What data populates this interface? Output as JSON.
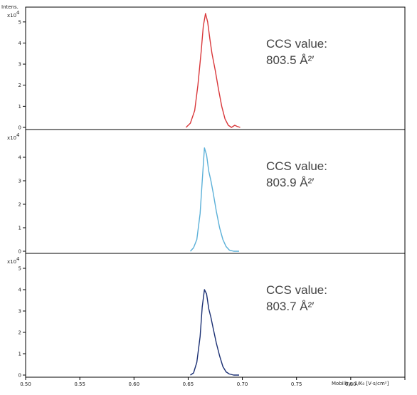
{
  "chart_data": {
    "type": "line",
    "y_axis_title": "Intens.",
    "y_scale_label": "x10",
    "y_scale_exponent": "4",
    "x_axis_title": "Mobility, 1/K₀ [V·s/cm²]",
    "x_ticks": [
      "0.50",
      "0.55",
      "0.60",
      "0.65",
      "0.70",
      "0.75",
      "0.80",
      "0.85"
    ],
    "xlim": [
      0.5,
      0.85
    ],
    "panels": [
      {
        "color": "#d9373a",
        "ylim": [
          0,
          5.5
        ],
        "y_ticks": [
          "0",
          "1",
          "2",
          "3",
          "4",
          "5"
        ],
        "annotation_line1": "CCS value:",
        "annotation_line2": "803.5 Å²′",
        "x": [
          0.648,
          0.652,
          0.656,
          0.659,
          0.662,
          0.664,
          0.666,
          0.668,
          0.67,
          0.672,
          0.675,
          0.678,
          0.681,
          0.684,
          0.687,
          0.69,
          0.693,
          0.695,
          0.698
        ],
        "y": [
          0.0,
          0.2,
          0.8,
          2.0,
          3.6,
          4.8,
          5.4,
          5.0,
          4.2,
          3.5,
          2.7,
          1.8,
          1.0,
          0.4,
          0.1,
          0.0,
          0.1,
          0.05,
          0.0
        ]
      },
      {
        "color": "#5bb0d8",
        "ylim": [
          0,
          5.0
        ],
        "y_ticks": [
          "0",
          "1",
          "2",
          "3",
          "4"
        ],
        "annotation_line1": "CCS value:",
        "annotation_line2": "803.9 Å²′",
        "x": [
          0.652,
          0.655,
          0.658,
          0.661,
          0.663,
          0.665,
          0.667,
          0.669,
          0.671,
          0.673,
          0.676,
          0.679,
          0.682,
          0.685,
          0.688,
          0.692,
          0.697
        ],
        "y": [
          0.0,
          0.15,
          0.5,
          1.6,
          3.0,
          4.4,
          4.1,
          3.4,
          3.0,
          2.5,
          1.7,
          1.0,
          0.5,
          0.2,
          0.05,
          0.0,
          0.0
        ]
      },
      {
        "color": "#1a2f73",
        "ylim": [
          0,
          5.5
        ],
        "y_ticks": [
          "0",
          "1",
          "2",
          "3",
          "4",
          "5"
        ],
        "annotation_line1": "CCS value:",
        "annotation_line2": "803.7 Å²′",
        "x": [
          0.652,
          0.655,
          0.658,
          0.661,
          0.663,
          0.665,
          0.667,
          0.669,
          0.671,
          0.673,
          0.676,
          0.679,
          0.682,
          0.685,
          0.688,
          0.692,
          0.697
        ],
        "y": [
          0.0,
          0.1,
          0.6,
          1.8,
          3.2,
          4.0,
          3.8,
          3.1,
          2.7,
          2.2,
          1.5,
          0.9,
          0.4,
          0.15,
          0.05,
          0.0,
          0.0
        ]
      }
    ]
  }
}
